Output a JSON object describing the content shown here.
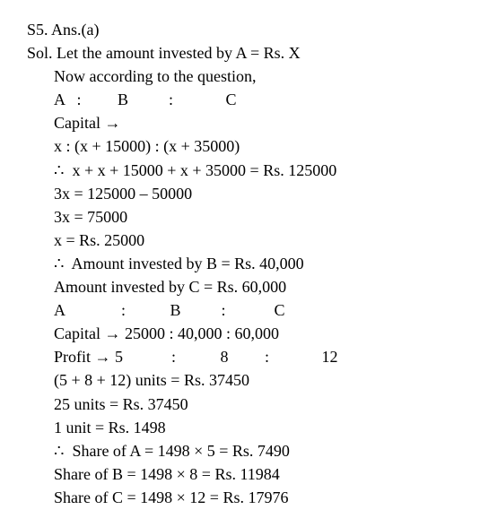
{
  "doc": {
    "font_family": "Georgia, Times New Roman, serif",
    "font_size": 18,
    "text_color": "#000000",
    "background_color": "#ffffff",
    "line_height": 1.45,
    "lines": {
      "l0": "S5. Ans.(a)",
      "l1": "Sol. Let the amount invested by A = Rs. X",
      "l2": "Now according to the question,",
      "l3": "A   :         B          :             C",
      "l4": "Capital →",
      "l5": "x : (x + 15000) : (x + 35000)",
      "l6": "∴  x + x + 15000 + x + 35000 = Rs. 125000",
      "l7": "3x = 125000 – 50000",
      "l8": "3x = 75000",
      "l9": "x = Rs. 25000",
      "l10": "∴  Amount invested by B = Rs. 40,000",
      "l11": "Amount invested by C = Rs. 60,000",
      "l12": "A              :           B          :            C",
      "l13": "Capital → 25000 : 40,000 : 60,000",
      "l14": "Profit → 5            :           8         :             12",
      "l15": "(5 + 8 + 12) units = Rs. 37450",
      "l16": "25 units = Rs. 37450",
      "l17": "1 unit = Rs. 1498",
      "l18": "∴  Share of A = 1498 × 5 = Rs. 7490",
      "l19": "Share of B = 1498 × 8 = Rs. 11984",
      "l20": "Share of C = 1498 × 12 = Rs. 17976"
    }
  }
}
